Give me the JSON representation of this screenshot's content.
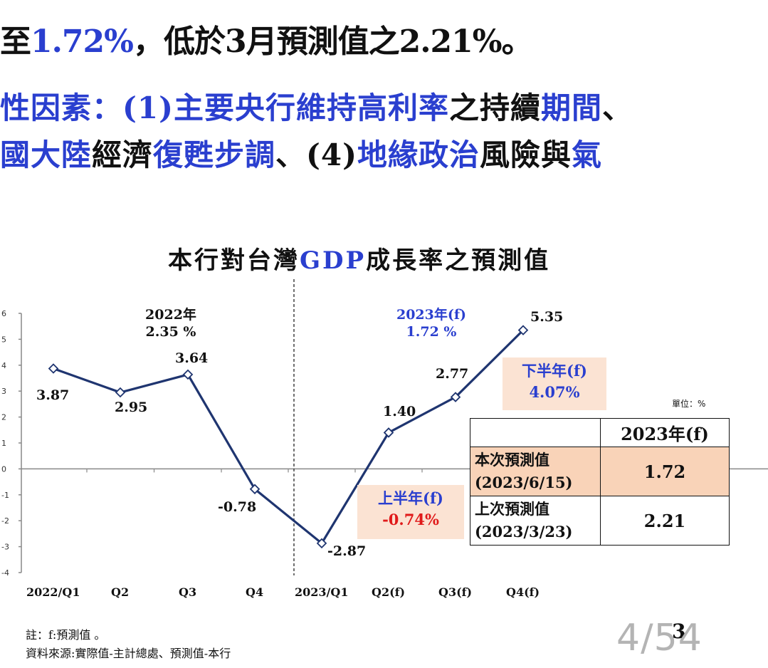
{
  "header": {
    "line1": [
      {
        "text": "至",
        "color": "dark"
      },
      {
        "text": "1.72%",
        "color": "blue"
      },
      {
        "text": "，低於3月預測值之2.21%。",
        "color": "dark"
      }
    ],
    "line2": [
      {
        "text": "性因素：(1)",
        "color": "blue"
      },
      {
        "text": "主要央行維持高利率",
        "color": "blue"
      },
      {
        "text": "之持續",
        "color": "dark"
      },
      {
        "text": "期間",
        "color": "blue"
      },
      {
        "text": "、",
        "color": "dark"
      }
    ],
    "line3": [
      {
        "text": "國大陸",
        "color": "blue"
      },
      {
        "text": "經濟",
        "color": "dark"
      },
      {
        "text": "復甦步調",
        "color": "blue"
      },
      {
        "text": "、(4)",
        "color": "dark"
      },
      {
        "text": "地緣政治",
        "color": "blue"
      },
      {
        "text": "風險與",
        "color": "dark"
      },
      {
        "text": "氣",
        "color": "blue"
      }
    ]
  },
  "chart_title": {
    "prefix": "本行對台灣",
    "highlight": "GDP",
    "suffix": "成長率之預測值"
  },
  "chart_data": {
    "type": "line",
    "title": "本行對台灣GDP成長率之預測值",
    "categories": [
      "2022/Q1",
      "Q2",
      "Q3",
      "Q4",
      "2023/Q1",
      "Q2(f)",
      "Q3(f)",
      "Q4(f)"
    ],
    "values": [
      3.87,
      2.95,
      3.64,
      -0.78,
      -2.87,
      1.4,
      2.77,
      5.35
    ],
    "value_labels": [
      "3.87",
      "2.95",
      "3.64",
      "-0.78",
      "-2.87",
      "1.40",
      "2.77",
      "5.35"
    ],
    "ylim": [
      -4,
      6
    ],
    "y_ticks": [
      "6",
      "5",
      "4",
      "3",
      "2",
      "1",
      "0",
      "-1",
      "-2",
      "-3",
      "-4"
    ],
    "line_color": "#1f3570",
    "marker": "diamond",
    "annotations": {
      "year2022": {
        "line1": "2022年",
        "line2": "2.35 %"
      },
      "year2023": {
        "line1": "2023年(f)",
        "line2": "1.72 %"
      },
      "h1": {
        "title": "上半年(f)",
        "value": "-0.74%"
      },
      "h2": {
        "title": "下半年(f)",
        "value": "4.07%"
      }
    }
  },
  "unit_label": "單位：%",
  "forecast_table": {
    "header": "2023年(f)",
    "rows": [
      {
        "label1": "本次預測值",
        "label2": "(2023/6/15)",
        "value": "1.72",
        "highlight": true
      },
      {
        "label1": "上次預測值",
        "label2": "(2023/3/23)",
        "value": "2.21",
        "highlight": false
      }
    ]
  },
  "notes": {
    "note": "註：f:預測值 。",
    "source": "資料來源:實際值-主計總處、預測值-本行"
  },
  "page_number": "3",
  "page_counter": "4/54",
  "colors": {
    "blue": "#2a3fcf",
    "red": "#e01a1a",
    "highlight": "#f9d3b8"
  }
}
